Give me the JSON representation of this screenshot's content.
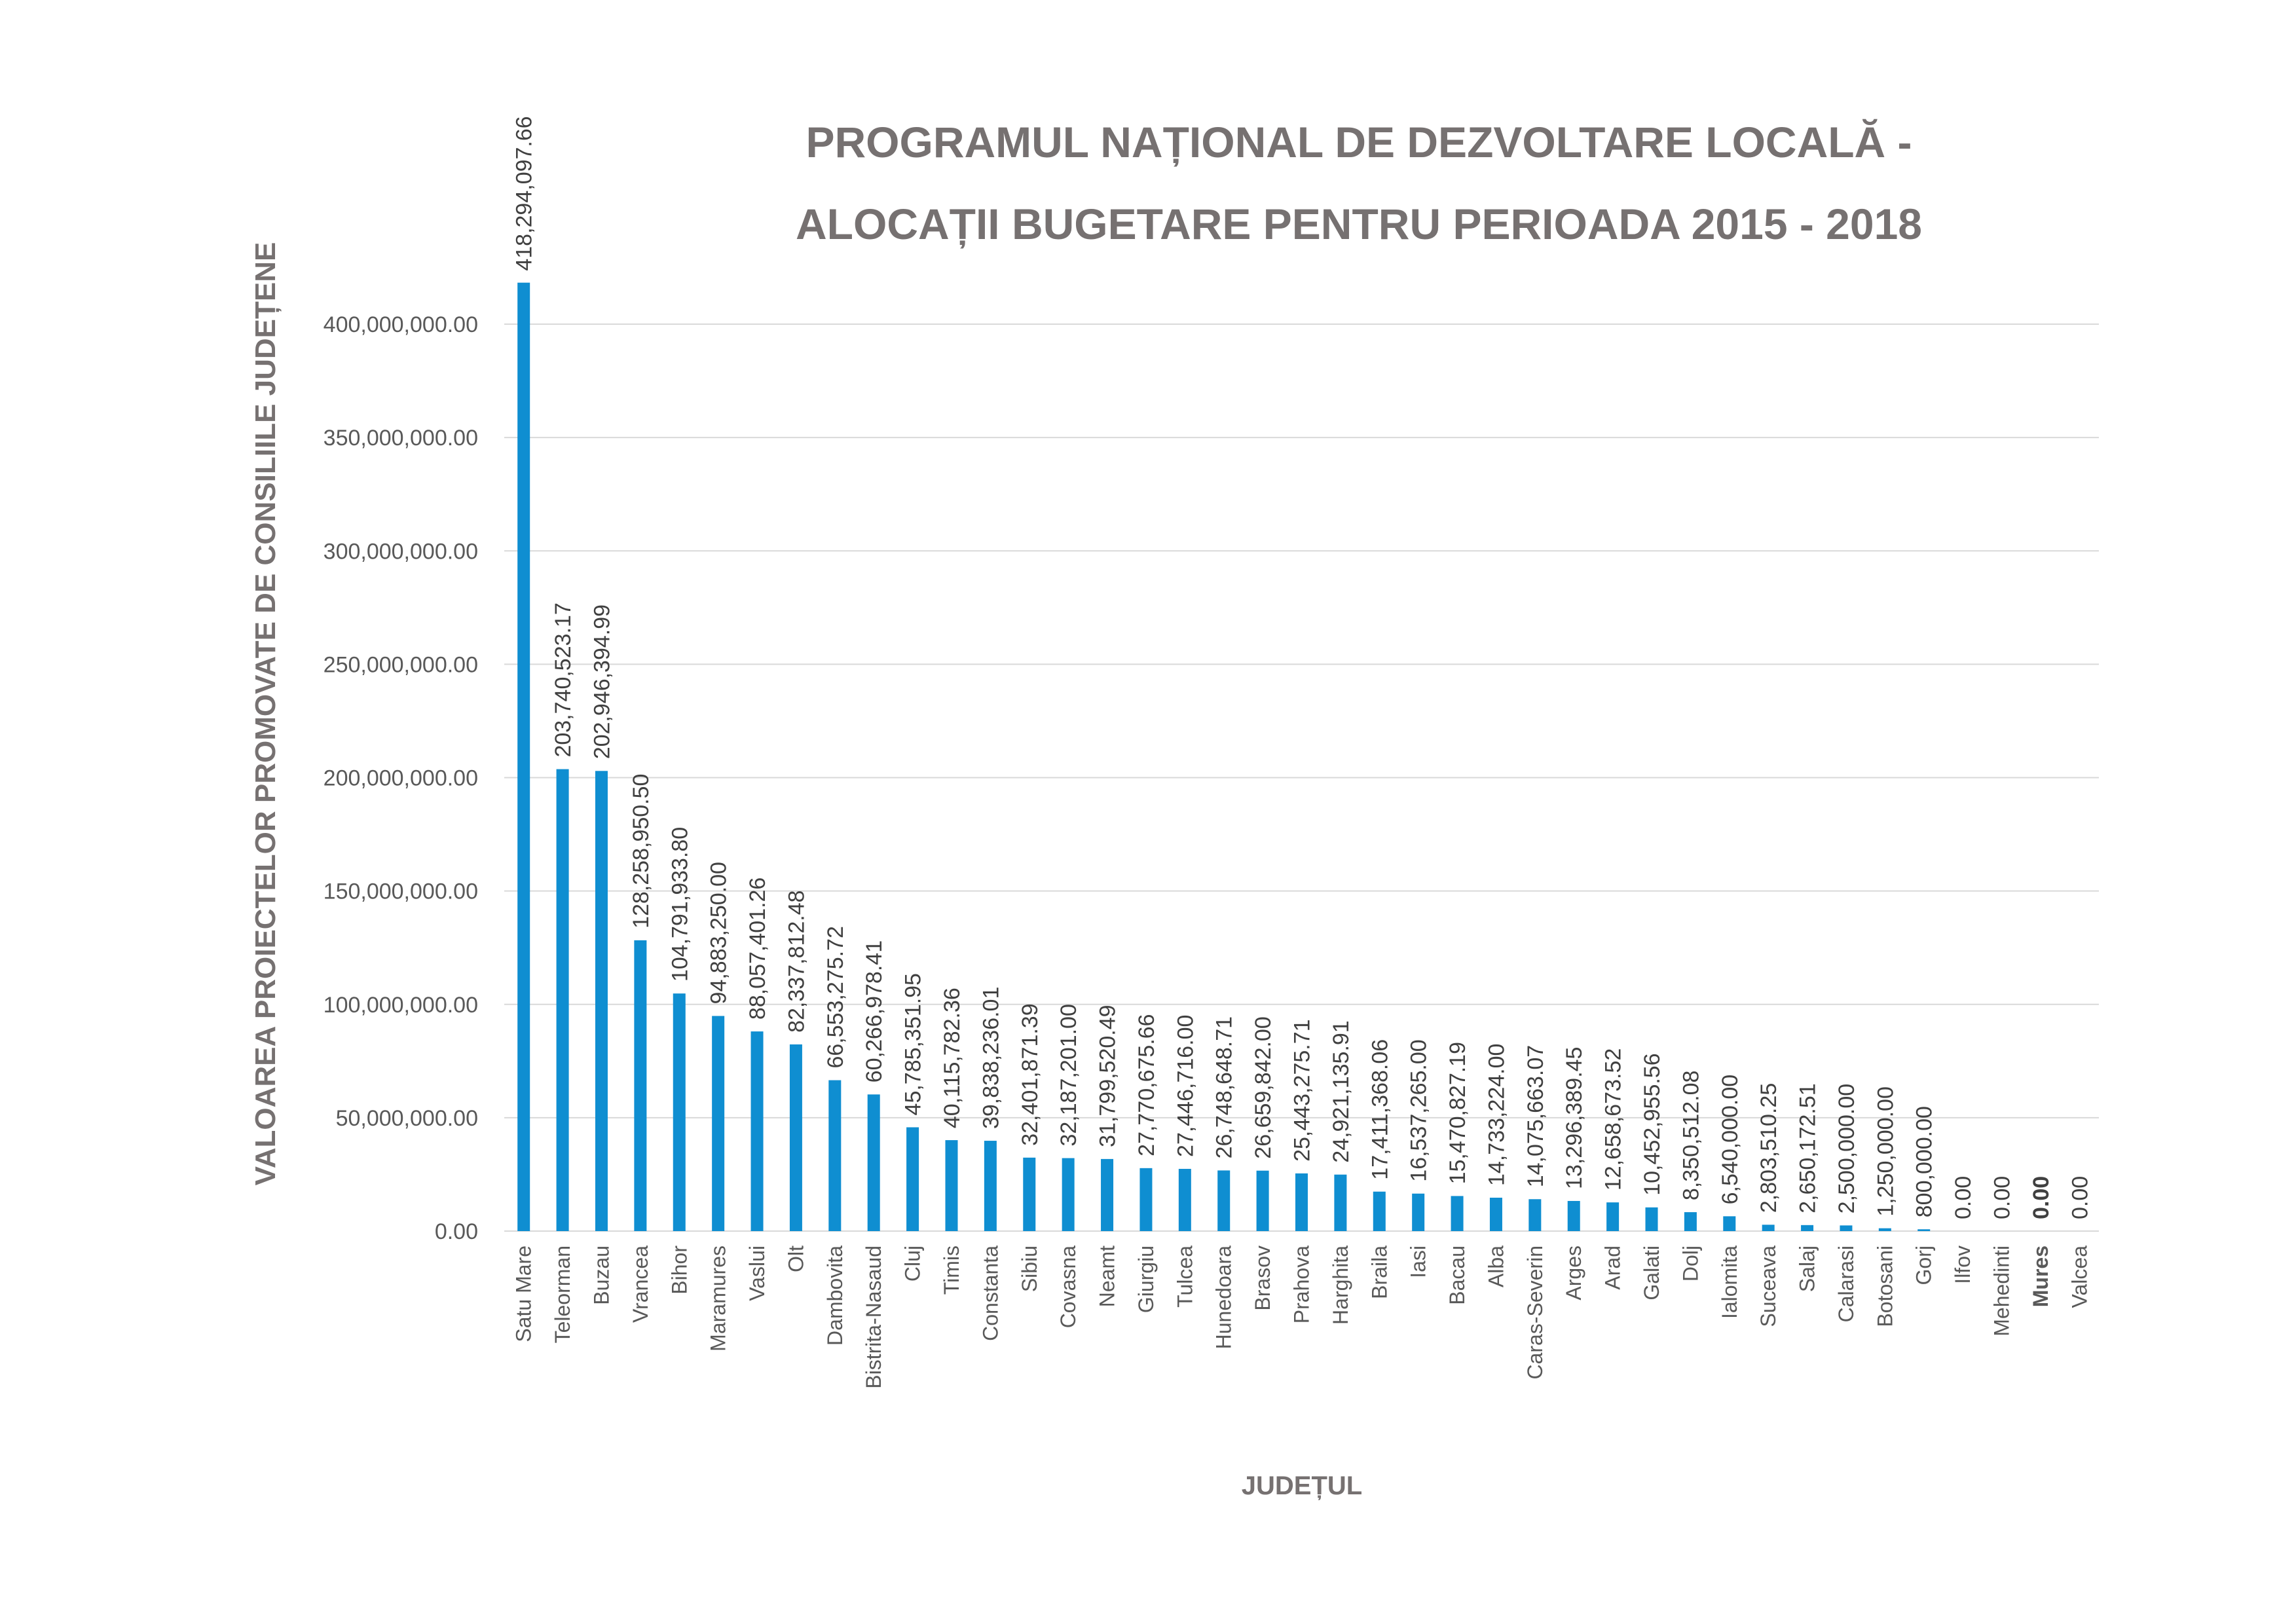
{
  "colors": {
    "bar": "#0f8ed1",
    "highlight": "#c00000",
    "title": "#767171",
    "axis_text": "#595959",
    "grid": "#d9d9d9"
  },
  "chart_data": {
    "type": "bar",
    "title_line1": "PROGRAMUL NAȚIONAL DE DEZVOLTARE LOCALĂ  -",
    "title_line2": "ALOCAȚII BUGETARE PENTRU PERIOADA 2015 - 2018",
    "xlabel": "JUDEȚUL",
    "ylabel": "VALOAREA PROIECTELOR PROMOVATE DE CONSILIILE JUDEȚENE",
    "ylim": [
      0,
      400000000
    ],
    "yticks": [
      "0.00",
      "50,000,000.00",
      "100,000,000.00",
      "150,000,000.00",
      "200,000,000.00",
      "250,000,000.00",
      "300,000,000.00",
      "350,000,000.00",
      "400,000,000.00"
    ],
    "grid": true,
    "legend": "none",
    "highlight_category": "Mures",
    "categories": [
      "Satu Mare",
      "Teleorman",
      "Buzau",
      "Vrancea",
      "Bihor",
      "Maramures",
      "Vaslui",
      "Olt",
      "Dambovita",
      "Bistrita-Nasaud",
      "Cluj",
      "Timis",
      "Constanta",
      "Sibiu",
      "Covasna",
      "Neamt",
      "Giurgiu",
      "Tulcea",
      "Hunedoara",
      "Brasov",
      "Prahova",
      "Harghita",
      "Braila",
      "Iasi",
      "Bacau",
      "Alba",
      "Caras-Severin",
      "Arges",
      "Arad",
      "Galati",
      "Dolj",
      "Ialomita",
      "Suceava",
      "Salaj",
      "Calarasi",
      "Botosani",
      "Gorj",
      "Ilfov",
      "Mehedinti",
      "Mures",
      "Valcea"
    ],
    "values": [
      418294097.66,
      203740523.17,
      202946394.99,
      128258950.5,
      104791933.8,
      94883250.0,
      88057401.26,
      82337812.48,
      66553275.72,
      60266978.41,
      45785351.95,
      40115782.36,
      39838236.01,
      32401871.39,
      32187201.0,
      31799520.49,
      27770675.66,
      27446716.0,
      26748648.71,
      26659842.0,
      25443275.71,
      24921135.91,
      17411368.06,
      16537265.0,
      15470827.19,
      14733224.0,
      14075663.07,
      13296389.45,
      12658673.52,
      10452955.56,
      8350512.08,
      6540000.0,
      2803510.25,
      2650172.51,
      2500000.0,
      1250000.0,
      800000.0,
      0.0,
      0.0,
      0.0,
      0.0
    ],
    "value_labels": [
      "418,294,097.66",
      "203,740,523.17",
      "202,946,394.99",
      "128,258,950.50",
      "104,791,933.80",
      "94,883,250.00",
      "88,057,401.26",
      "82,337,812.48",
      "66,553,275.72",
      "60,266,978.41",
      "45,785,351.95",
      "40,115,782.36",
      "39,838,236.01",
      "32,401,871.39",
      "32,187,201.00",
      "31,799,520.49",
      "27,770,675.66",
      "27,446,716.00",
      "26,748,648.71",
      "26,659,842.00",
      "25,443,275.71",
      "24,921,135.91",
      "17,411,368.06",
      "16,537,265.00",
      "15,470,827.19",
      "14,733,224.00",
      "14,075,663.07",
      "13,296,389.45",
      "12,658,673.52",
      "10,452,955.56",
      "8,350,512.08",
      "6,540,000.00",
      "2,803,510.25",
      "2,650,172.51",
      "2,500,000.00",
      "1,250,000.00",
      "800,000.00",
      "0.00",
      "0.00",
      "0.00",
      "0.00"
    ]
  }
}
